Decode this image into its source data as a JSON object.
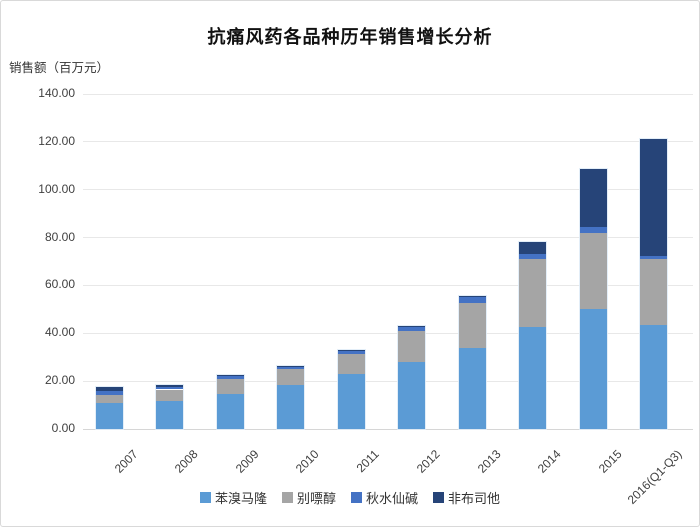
{
  "title": "抗痛风药各品种历年销售增长分析",
  "ylabel": "销售额（百万元）",
  "chart_data": {
    "type": "bar",
    "stacked": true,
    "title": "抗痛风药各品种历年销售增长分析",
    "ylabel": "销售额（百万元）",
    "xlabel": "",
    "categories": [
      "2007",
      "2008",
      "2009",
      "2010",
      "2011",
      "2012",
      "2013",
      "2014",
      "2015",
      "2016(Q1-Q3)"
    ],
    "series": [
      {
        "name": "苯溴马隆",
        "color": "#5B9BD5",
        "values": [
          11.0,
          11.5,
          14.5,
          18.5,
          23.0,
          28.0,
          34.0,
          42.5,
          50.0,
          43.5
        ]
      },
      {
        "name": "别嘌醇",
        "color": "#A5A5A5",
        "values": [
          3.2,
          5.0,
          6.5,
          6.5,
          8.5,
          13.0,
          18.5,
          28.5,
          32.0,
          27.5
        ]
      },
      {
        "name": "秋水仙碱",
        "color": "#4472C4",
        "values": [
          1.6,
          1.2,
          1.0,
          1.0,
          1.0,
          1.5,
          2.5,
          2.0,
          2.5,
          1.5
        ]
      },
      {
        "name": "非布司他",
        "color": "#264478",
        "values": [
          1.7,
          0.8,
          0.5,
          0.5,
          0.5,
          0.5,
          0.5,
          5.0,
          24.0,
          48.5
        ]
      }
    ],
    "ylim": [
      0,
      140
    ],
    "ytick_step": 20,
    "ytick_labels": [
      "0.00",
      "20.00",
      "40.00",
      "60.00",
      "80.00",
      "100.00",
      "120.00",
      "140.00"
    ],
    "grid": true,
    "legend_position": "bottom"
  }
}
